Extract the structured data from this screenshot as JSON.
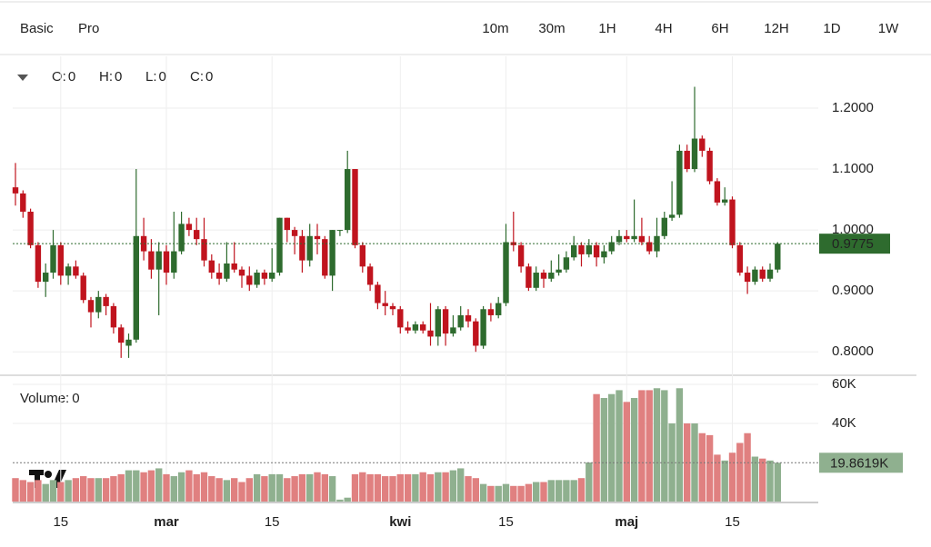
{
  "tabs": [
    "Basic",
    "Pro"
  ],
  "active_tab": 0,
  "intervals": [
    "10m",
    "30m",
    "1H",
    "4H",
    "6H",
    "12H",
    "1D",
    "1W"
  ],
  "active_interval": 6,
  "ohlc_legend": [
    {
      "label": "O:",
      "value": "0"
    },
    {
      "label": "H:",
      "value": "0"
    },
    {
      "label": "L:",
      "value": "0"
    },
    {
      "label": "C:",
      "value": "0"
    }
  ],
  "volume_legend": {
    "label": "Volume:",
    "value": "0"
  },
  "chart_data": {
    "type": "candlestick",
    "categories": [
      null,
      null,
      null,
      null,
      null,
      null,
      "15",
      null,
      null,
      null,
      null,
      null,
      null,
      null,
      null,
      null,
      null,
      null,
      null,
      null,
      "mar",
      null,
      null,
      null,
      null,
      null,
      null,
      null,
      null,
      null,
      null,
      null,
      null,
      null,
      "15",
      null,
      null,
      null,
      null,
      null,
      null,
      null,
      null,
      null,
      null,
      null,
      null,
      null,
      null,
      null,
      null,
      "kwi",
      null,
      null,
      null,
      null,
      null,
      null,
      null,
      null,
      null,
      null,
      null,
      null,
      null,
      "15",
      null,
      null,
      null,
      null,
      null,
      null,
      null,
      null,
      null,
      null,
      null,
      null,
      null,
      null,
      null,
      "maj",
      null,
      null,
      null,
      null,
      null,
      null,
      null,
      null,
      null,
      null,
      null,
      null,
      null,
      "15",
      null,
      null,
      null,
      null,
      null,
      null
    ],
    "open": [
      1.07,
      1.06,
      1.03,
      0.975,
      0.915,
      0.93,
      0.975,
      0.925,
      0.94,
      0.925,
      0.885,
      0.865,
      0.89,
      0.875,
      0.84,
      0.81,
      0.82,
      0.99,
      0.965,
      0.935,
      0.965,
      0.93,
      0.965,
      1.01,
      1.0,
      0.985,
      0.95,
      0.93,
      0.92,
      0.945,
      0.935,
      0.925,
      0.91,
      0.93,
      0.92,
      0.93,
      1.02,
      1.0,
      0.99,
      0.95,
      0.99,
      0.985,
      0.925,
      1.0,
      1.0,
      1.1,
      0.975,
      0.94,
      0.91,
      0.88,
      0.875,
      0.87,
      0.84,
      0.835,
      0.845,
      0.835,
      0.825,
      0.87,
      0.83,
      0.84,
      0.86,
      0.85,
      0.81,
      0.87,
      0.86,
      0.88,
      0.98,
      0.975,
      0.94,
      0.905,
      0.93,
      0.92,
      0.93,
      0.935,
      0.955,
      0.975,
      0.96,
      0.975,
      0.955,
      0.965,
      0.98,
      0.99,
      0.985,
      0.99,
      0.98,
      0.965,
      0.99,
      1.02,
      1.025,
      1.13,
      1.1,
      1.15,
      1.13,
      1.08,
      1.045,
      1.05,
      0.975,
      0.93,
      0.915,
      0.935,
      0.92,
      0.935
    ],
    "high": [
      1.11,
      1.065,
      1.035,
      0.98,
      0.945,
      1.0,
      0.98,
      0.945,
      0.95,
      0.93,
      0.89,
      0.9,
      0.895,
      0.88,
      0.845,
      0.83,
      1.1,
      1.02,
      0.985,
      0.98,
      0.975,
      1.03,
      1.03,
      1.02,
      1.02,
      1.02,
      0.96,
      0.945,
      0.98,
      0.98,
      0.94,
      0.94,
      0.935,
      0.935,
      0.97,
      1.02,
      1.02,
      1.005,
      1.0,
      1.01,
      1.01,
      0.99,
      1.0,
      1.0,
      1.13,
      1.1,
      0.98,
      0.945,
      0.915,
      0.9,
      0.88,
      0.875,
      0.85,
      0.85,
      0.85,
      0.88,
      0.875,
      0.875,
      0.86,
      0.875,
      0.87,
      0.855,
      0.875,
      0.88,
      0.89,
      1.01,
      1.03,
      0.98,
      0.945,
      0.94,
      0.935,
      0.95,
      0.96,
      0.965,
      0.99,
      0.98,
      0.985,
      0.98,
      0.975,
      0.99,
      1.0,
      1.0,
      1.05,
      1.02,
      0.99,
      1.02,
      1.03,
      1.08,
      1.14,
      1.14,
      1.235,
      1.155,
      1.135,
      1.085,
      1.07,
      1.055,
      0.98,
      0.94,
      0.94,
      0.94,
      0.945,
      0.98
    ],
    "low": [
      1.04,
      1.02,
      0.97,
      0.905,
      0.89,
      0.92,
      0.91,
      0.91,
      0.92,
      0.88,
      0.84,
      0.855,
      0.86,
      0.83,
      0.79,
      0.79,
      0.815,
      0.95,
      0.92,
      0.86,
      0.91,
      0.92,
      0.96,
      0.99,
      0.975,
      0.94,
      0.92,
      0.91,
      0.915,
      0.93,
      0.905,
      0.9,
      0.905,
      0.91,
      0.915,
      0.925,
      0.98,
      0.96,
      0.93,
      0.94,
      0.96,
      0.92,
      0.9,
      0.99,
      0.995,
      0.97,
      0.93,
      0.9,
      0.87,
      0.86,
      0.86,
      0.83,
      0.83,
      0.83,
      0.83,
      0.81,
      0.81,
      0.81,
      0.825,
      0.835,
      0.84,
      0.8,
      0.805,
      0.85,
      0.855,
      0.875,
      0.965,
      0.93,
      0.9,
      0.9,
      0.905,
      0.915,
      0.925,
      0.93,
      0.95,
      0.94,
      0.955,
      0.94,
      0.945,
      0.96,
      0.975,
      0.98,
      0.98,
      0.975,
      0.96,
      0.955,
      0.985,
      1.015,
      1.02,
      1.095,
      1.095,
      1.12,
      1.075,
      1.04,
      1.04,
      0.97,
      0.925,
      0.895,
      0.91,
      0.915,
      0.915,
      0.93
    ],
    "close": [
      1.06,
      1.03,
      0.975,
      0.915,
      0.93,
      0.975,
      0.925,
      0.94,
      0.925,
      0.885,
      0.865,
      0.89,
      0.875,
      0.84,
      0.815,
      0.82,
      0.99,
      0.965,
      0.935,
      0.965,
      0.93,
      0.965,
      1.01,
      1.0,
      0.985,
      0.95,
      0.93,
      0.92,
      0.945,
      0.935,
      0.925,
      0.91,
      0.93,
      0.92,
      0.93,
      1.02,
      1.0,
      0.99,
      0.95,
      0.99,
      0.985,
      0.925,
      1.0,
      1.0,
      1.1,
      0.975,
      0.94,
      0.91,
      0.88,
      0.875,
      0.87,
      0.84,
      0.835,
      0.845,
      0.835,
      0.825,
      0.87,
      0.83,
      0.84,
      0.86,
      0.85,
      0.81,
      0.87,
      0.86,
      0.88,
      0.98,
      0.975,
      0.94,
      0.905,
      0.93,
      0.92,
      0.93,
      0.935,
      0.955,
      0.975,
      0.96,
      0.975,
      0.955,
      0.965,
      0.98,
      0.99,
      0.985,
      0.99,
      0.98,
      0.965,
      0.99,
      1.02,
      1.025,
      1.13,
      1.1,
      1.15,
      1.13,
      1.08,
      1.045,
      1.05,
      0.975,
      0.93,
      0.915,
      0.935,
      0.92,
      0.935,
      0.9775
    ],
    "ylim": [
      0.763,
      1.285
    ],
    "yticks": [
      {
        "value": 0.8,
        "label": "0.8000"
      },
      {
        "value": 0.9,
        "label": "0.9000"
      },
      {
        "value": 1.0,
        "label": "1.0000"
      },
      {
        "value": 1.1,
        "label": "1.1000"
      },
      {
        "value": 1.2,
        "label": "1.2000"
      }
    ],
    "up_color": "#2e6b2e",
    "down_color": "#c0141e",
    "grid": true,
    "last_price_line": true,
    "volume": {
      "values": [
        12000,
        11000,
        10000,
        11000,
        9000,
        11000,
        10000,
        11000,
        12000,
        13000,
        12000,
        12000,
        12000,
        13000,
        14000,
        16000,
        16000,
        15000,
        16000,
        17000,
        14000,
        13000,
        15000,
        16000,
        14000,
        15000,
        13000,
        12000,
        11000,
        12000,
        10000,
        12000,
        14000,
        13000,
        14000,
        14000,
        12000,
        13000,
        14000,
        14000,
        15000,
        14000,
        13000,
        1000,
        2000,
        14000,
        15000,
        14000,
        14000,
        13000,
        13000,
        14000,
        14000,
        14000,
        15000,
        14000,
        15000,
        15000,
        16000,
        17000,
        13000,
        12000,
        9000,
        8000,
        8000,
        9000,
        8000,
        8000,
        9000,
        10000,
        10000,
        11000,
        11000,
        11000,
        11000,
        12000,
        20000,
        55000,
        53000,
        55000,
        57000,
        51000,
        53000,
        57000,
        57000,
        58000,
        57000,
        40000,
        58000,
        40000,
        40000,
        35000,
        34000,
        24000,
        21000,
        25000,
        30000,
        35000,
        23000,
        22000,
        21000,
        19861.9
      ],
      "last_label": "19.8619K",
      "ylim": [
        0,
        63700
      ],
      "yticks": [
        {
          "value": 40000,
          "label": "40K"
        },
        {
          "value": 60000,
          "label": "60K"
        }
      ],
      "up_color": "#8fb08f",
      "down_color": "#e08080"
    }
  }
}
